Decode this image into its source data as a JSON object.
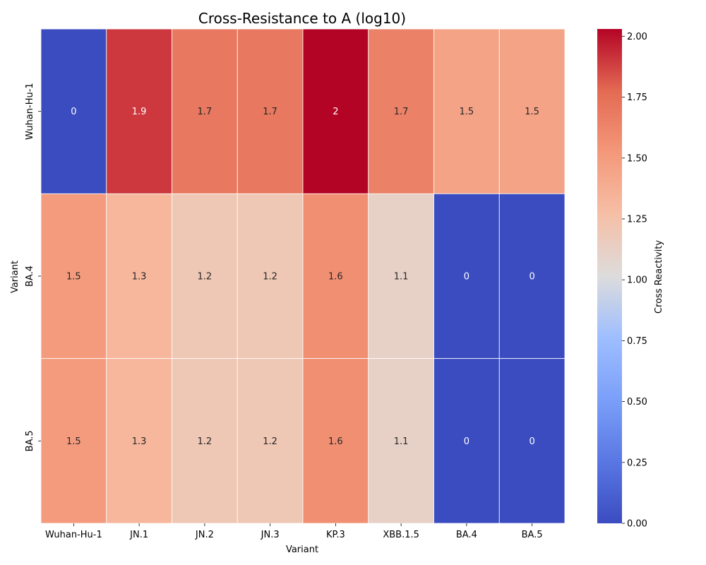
{
  "chart_data": {
    "type": "heatmap",
    "title": "Cross-Resistance to A (log10)",
    "xlabel": "Variant",
    "ylabel": "Variant",
    "x_categories": [
      "Wuhan-Hu-1",
      "JN.1",
      "JN.2",
      "JN.3",
      "KP.3",
      "XBB.1.5",
      "BA.4",
      "BA.5"
    ],
    "y_categories": [
      "Wuhan-Hu-1",
      "BA.4",
      "BA.5"
    ],
    "values": [
      [
        0,
        1.9,
        1.7,
        1.7,
        2.03,
        1.65,
        1.45,
        1.45
      ],
      [
        1.5,
        1.32,
        1.2,
        1.2,
        1.57,
        1.12,
        0,
        0
      ],
      [
        1.5,
        1.32,
        1.2,
        1.2,
        1.57,
        1.12,
        0,
        0
      ]
    ],
    "labels": [
      [
        "0",
        "1.9",
        "1.7",
        "1.7",
        "2",
        "1.7",
        "1.5",
        "1.5"
      ],
      [
        "1.5",
        "1.3",
        "1.2",
        "1.2",
        "1.6",
        "1.1",
        "0",
        "0"
      ],
      [
        "1.5",
        "1.3",
        "1.2",
        "1.2",
        "1.6",
        "1.1",
        "0",
        "0"
      ]
    ],
    "colorbar": {
      "label": "Cross Reactivity",
      "range": [
        0,
        2.03
      ],
      "ticks": [
        "0.00",
        "0.25",
        "0.50",
        "0.75",
        "1.00",
        "1.25",
        "1.50",
        "1.75",
        "2.00"
      ],
      "colormap": "coolwarm"
    }
  }
}
